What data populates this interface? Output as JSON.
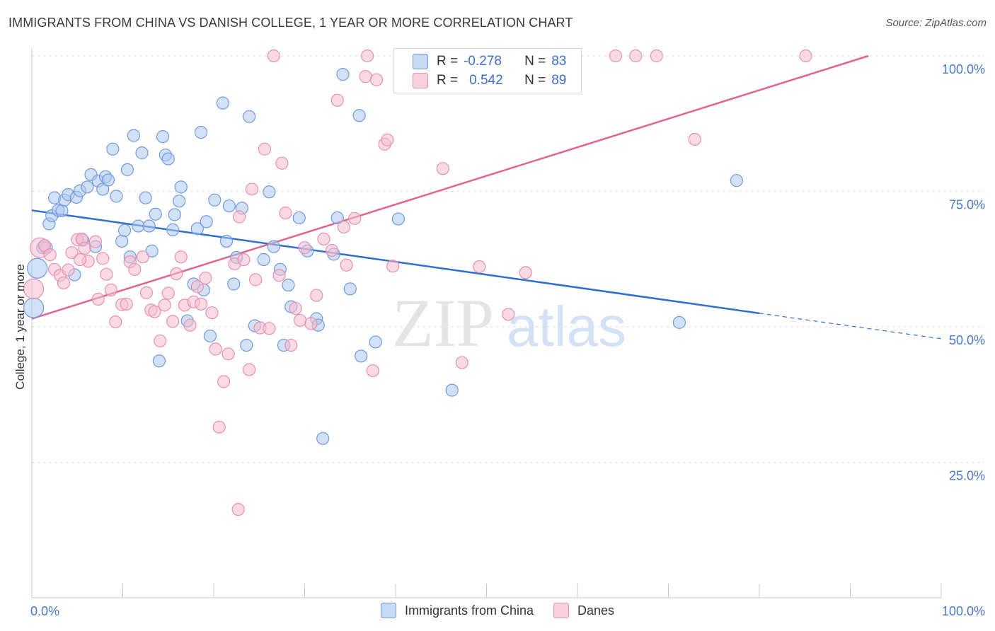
{
  "header": {
    "title": "IMMIGRANTS FROM CHINA VS DANISH COLLEGE, 1 YEAR OR MORE CORRELATION CHART",
    "source": "Source: ZipAtlas.com"
  },
  "watermark": {
    "zip": "ZIP",
    "atlas": "atlas"
  },
  "legend": {
    "rows": [
      {
        "r_label": "R =",
        "r_value": "-0.278",
        "n_label": "N =",
        "n_value": "83"
      },
      {
        "r_label": "R =",
        "r_value": "0.542",
        "n_label": "N =",
        "n_value": "89"
      }
    ]
  },
  "bottom_legend": {
    "china": "Immigrants from China",
    "danes": "Danes"
  },
  "colors": {
    "china_fill": "#aec8ee",
    "china_stroke": "#6f9ae0",
    "china_line": "#2f6fd1",
    "danes_fill": "#f6bdd0",
    "danes_stroke": "#e98fae",
    "danes_line": "#e0648f",
    "tick_text": "#4a78c8"
  },
  "chart_data": {
    "type": "scatter",
    "xlabel": "",
    "ylabel": "College, 1 year or more",
    "xlim": [
      0,
      100
    ],
    "ylim": [
      0,
      100
    ],
    "x_tick_labels": [
      "0.0%",
      "100.0%"
    ],
    "y_ticks": [
      25,
      50,
      75,
      100
    ],
    "y_tick_labels": [
      "25.0%",
      "50.0%",
      "75.0%",
      "100.0%"
    ],
    "grid": true,
    "legend_position": "top-center",
    "series": [
      {
        "name": "Immigrants from China",
        "color": "#6f9ae0",
        "trend": {
          "x0": 0,
          "y0": 71.5,
          "x1": 80,
          "y1": 52.5,
          "dashed_to_x": 100,
          "dashed_to_y": 47.8
        },
        "points": [
          [
            0.2,
            53.5
          ],
          [
            0.6,
            60.8
          ],
          [
            1.2,
            64.6
          ],
          [
            1.6,
            64.6
          ],
          [
            1.9,
            69.0
          ],
          [
            2.2,
            70.5
          ],
          [
            2.5,
            73.8
          ],
          [
            2.9,
            71.5
          ],
          [
            3.3,
            71.4
          ],
          [
            3.6,
            73.4
          ],
          [
            4.0,
            74.4
          ],
          [
            4.7,
            59.6
          ],
          [
            4.9,
            73.9
          ],
          [
            5.3,
            75.1
          ],
          [
            5.6,
            66.0
          ],
          [
            6.1,
            75.8
          ],
          [
            6.5,
            78.1
          ],
          [
            7.0,
            64.8
          ],
          [
            7.3,
            76.9
          ],
          [
            7.8,
            75.4
          ],
          [
            8.1,
            77.7
          ],
          [
            8.4,
            77.1
          ],
          [
            8.9,
            82.8
          ],
          [
            9.3,
            74.1
          ],
          [
            9.9,
            65.8
          ],
          [
            10.2,
            67.8
          ],
          [
            10.5,
            79.0
          ],
          [
            10.8,
            62.9
          ],
          [
            11.2,
            85.3
          ],
          [
            11.7,
            68.6
          ],
          [
            12.1,
            82.1
          ],
          [
            12.5,
            73.8
          ],
          [
            12.9,
            68.6
          ],
          [
            13.2,
            64.0
          ],
          [
            13.6,
            70.8
          ],
          [
            14.0,
            43.7
          ],
          [
            14.4,
            85.1
          ],
          [
            14.7,
            81.7
          ],
          [
            15.0,
            81.0
          ],
          [
            15.5,
            67.9
          ],
          [
            15.7,
            70.7
          ],
          [
            16.2,
            73.2
          ],
          [
            16.4,
            75.8
          ],
          [
            17.1,
            51.1
          ],
          [
            17.8,
            57.9
          ],
          [
            18.2,
            68.1
          ],
          [
            18.6,
            85.9
          ],
          [
            18.9,
            56.8
          ],
          [
            19.2,
            69.4
          ],
          [
            19.6,
            48.3
          ],
          [
            20.1,
            73.4
          ],
          [
            21.0,
            91.3
          ],
          [
            21.4,
            65.8
          ],
          [
            21.7,
            72.3
          ],
          [
            22.2,
            57.9
          ],
          [
            22.5,
            62.8
          ],
          [
            23.1,
            71.9
          ],
          [
            23.6,
            46.6
          ],
          [
            23.9,
            88.8
          ],
          [
            24.5,
            50.2
          ],
          [
            25.5,
            62.4
          ],
          [
            26.1,
            74.9
          ],
          [
            26.6,
            64.8
          ],
          [
            27.3,
            60.6
          ],
          [
            27.7,
            46.6
          ],
          [
            28.2,
            57.7
          ],
          [
            28.5,
            53.7
          ],
          [
            29.4,
            70.1
          ],
          [
            30.3,
            64.0
          ],
          [
            31.3,
            51.5
          ],
          [
            31.5,
            50.3
          ],
          [
            32.0,
            29.4
          ],
          [
            33.2,
            63.4
          ],
          [
            33.6,
            70.1
          ],
          [
            34.2,
            96.6
          ],
          [
            35.0,
            57.0
          ],
          [
            36.0,
            89.0
          ],
          [
            36.2,
            44.6
          ],
          [
            37.8,
            47.2
          ],
          [
            40.3,
            69.9
          ],
          [
            46.2,
            38.3
          ],
          [
            77.5,
            77.0
          ],
          [
            71.2,
            50.8
          ]
        ]
      },
      {
        "name": "Danes",
        "color": "#e98fae",
        "trend": {
          "x0": 0,
          "y0": 51.5,
          "x1": 92,
          "y1": 100
        },
        "points": [
          [
            0.2,
            57.0
          ],
          [
            0.9,
            64.6
          ],
          [
            1.4,
            65.0
          ],
          [
            2.0,
            63.3
          ],
          [
            2.5,
            60.6
          ],
          [
            3.1,
            59.5
          ],
          [
            3.5,
            58.1
          ],
          [
            4.0,
            60.5
          ],
          [
            4.4,
            63.7
          ],
          [
            5.0,
            66.1
          ],
          [
            5.5,
            66.2
          ],
          [
            5.8,
            64.5
          ],
          [
            6.2,
            62.1
          ],
          [
            7.0,
            65.7
          ],
          [
            7.3,
            55.1
          ],
          [
            7.8,
            62.6
          ],
          [
            8.2,
            59.7
          ],
          [
            8.7,
            56.8
          ],
          [
            9.2,
            50.9
          ],
          [
            9.9,
            54.1
          ],
          [
            10.4,
            54.2
          ],
          [
            10.8,
            62.0
          ],
          [
            11.3,
            60.6
          ],
          [
            12.2,
            62.9
          ],
          [
            12.6,
            56.3
          ],
          [
            13.1,
            53.1
          ],
          [
            13.5,
            52.8
          ],
          [
            14.1,
            47.4
          ],
          [
            14.6,
            54.0
          ],
          [
            15.0,
            56.2
          ],
          [
            15.5,
            51.0
          ],
          [
            15.9,
            59.8
          ],
          [
            16.4,
            62.9
          ],
          [
            16.8,
            54.0
          ],
          [
            17.4,
            50.3
          ],
          [
            17.8,
            54.6
          ],
          [
            18.2,
            57.4
          ],
          [
            18.6,
            54.2
          ],
          [
            19.1,
            59.0
          ],
          [
            19.8,
            52.6
          ],
          [
            20.2,
            45.9
          ],
          [
            20.6,
            31.5
          ],
          [
            21.1,
            39.9
          ],
          [
            21.6,
            45.0
          ],
          [
            22.3,
            61.6
          ],
          [
            22.8,
            70.3
          ],
          [
            23.3,
            62.4
          ],
          [
            23.9,
            42.1
          ],
          [
            24.2,
            75.4
          ],
          [
            24.6,
            58.7
          ],
          [
            25.1,
            49.8
          ],
          [
            25.6,
            82.8
          ],
          [
            26.1,
            49.7
          ],
          [
            26.6,
            100.0
          ],
          [
            27.2,
            59.5
          ],
          [
            27.5,
            80.2
          ],
          [
            27.9,
            71.0
          ],
          [
            28.5,
            46.6
          ],
          [
            29.0,
            53.4
          ],
          [
            29.5,
            51.2
          ],
          [
            30.0,
            64.6
          ],
          [
            30.7,
            50.6
          ],
          [
            31.3,
            55.8
          ],
          [
            32.1,
            66.2
          ],
          [
            33.0,
            64.1
          ],
          [
            33.6,
            91.8
          ],
          [
            34.3,
            68.4
          ],
          [
            34.6,
            61.4
          ],
          [
            35.5,
            70.0
          ],
          [
            36.7,
            96.2
          ],
          [
            37.5,
            41.9
          ],
          [
            37.9,
            95.6
          ],
          [
            38.8,
            83.7
          ],
          [
            39.1,
            84.5
          ],
          [
            39.7,
            61.2
          ],
          [
            44.6,
            100.0
          ],
          [
            45.2,
            79.2
          ],
          [
            47.3,
            43.4
          ],
          [
            49.2,
            61.1
          ],
          [
            52.4,
            52.3
          ],
          [
            54.3,
            60.0
          ],
          [
            64.2,
            100.0
          ],
          [
            66.4,
            100.0
          ],
          [
            68.7,
            100.0
          ],
          [
            72.9,
            84.6
          ],
          [
            85.1,
            100.0
          ],
          [
            22.7,
            16.3
          ],
          [
            5.3,
            62.4
          ],
          [
            36.9,
            100.0
          ]
        ]
      }
    ]
  }
}
